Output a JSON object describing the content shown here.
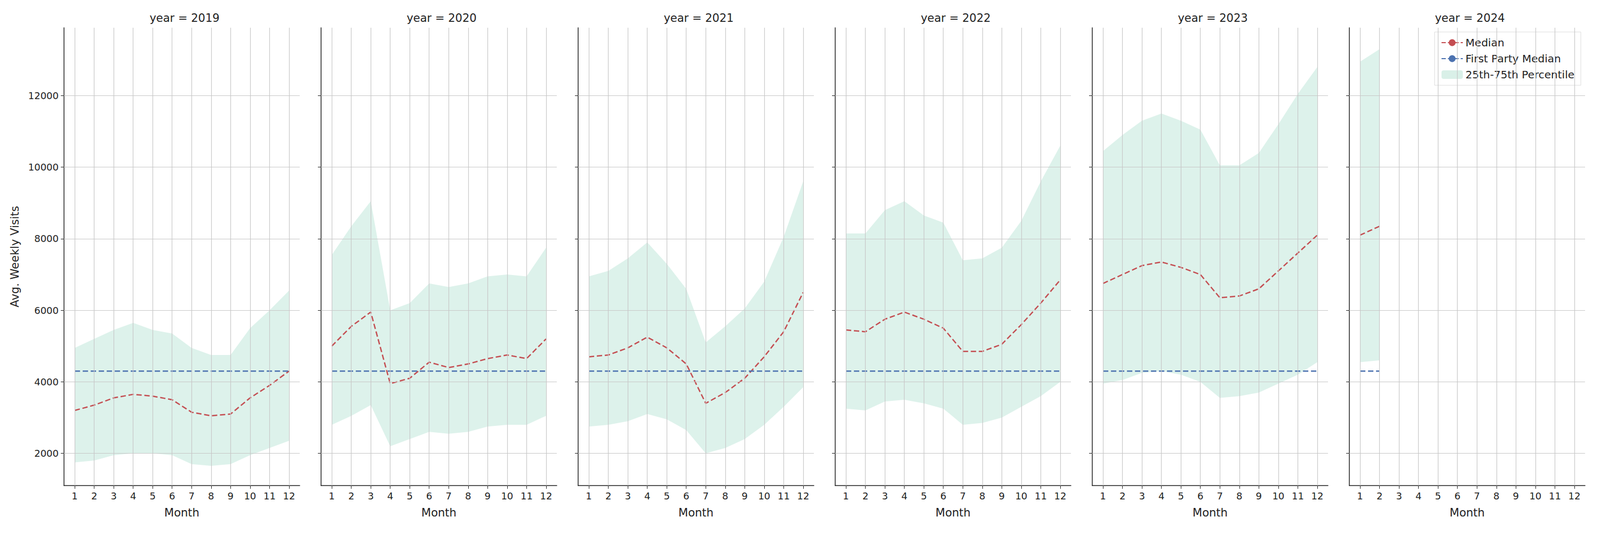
{
  "chart_data": [
    {
      "type": "line",
      "title": "year = 2019",
      "xlabel": "Month",
      "ylabel": "Avg. Weekly Visits",
      "x": [
        1,
        2,
        3,
        4,
        5,
        6,
        7,
        8,
        9,
        10,
        11,
        12
      ],
      "xlim": [
        0.45,
        12.55
      ],
      "xticks": [
        1,
        2,
        3,
        4,
        5,
        6,
        7,
        8,
        9,
        10,
        11,
        12
      ],
      "ylim": [
        1100,
        13900
      ],
      "yticks": [
        2000,
        4000,
        6000,
        8000,
        10000,
        12000
      ],
      "grid": true,
      "series": [
        {
          "name": "Median",
          "color": "#c44e52",
          "line_style": "dashed",
          "values": [
            3200,
            3350,
            3550,
            3650,
            3600,
            3500,
            3150,
            3050,
            3100,
            3550,
            3900,
            4300
          ]
        },
        {
          "name": "First Party Median",
          "color": "#4c72b0",
          "line_style": "dashed",
          "values": [
            4300,
            4300,
            4300,
            4300,
            4300,
            4300,
            4300,
            4300,
            4300,
            4300,
            4300,
            4300
          ]
        },
        {
          "name": "25th-75th Percentile",
          "type": "band",
          "color": "#66c2a5",
          "low": [
            1750,
            1800,
            1950,
            2000,
            2000,
            1950,
            1700,
            1650,
            1700,
            1950,
            2150,
            2350
          ],
          "high": [
            4950,
            5200,
            5450,
            5650,
            5450,
            5350,
            4950,
            4750,
            4750,
            5500,
            6000,
            6550
          ]
        }
      ]
    },
    {
      "type": "line",
      "title": "year = 2020",
      "xlabel": "Month",
      "tick_labels": "x",
      "x": [
        1,
        2,
        3,
        4,
        5,
        6,
        7,
        8,
        9,
        10,
        11,
        12
      ],
      "xlim": [
        0.45,
        12.55
      ],
      "xticks": [
        1,
        2,
        3,
        4,
        5,
        6,
        7,
        8,
        9,
        10,
        11,
        12
      ],
      "ylim": [
        1100,
        13900
      ],
      "yticks": [
        2000,
        4000,
        6000,
        8000,
        10000,
        12000
      ],
      "grid": true,
      "series": [
        {
          "name": "Median",
          "color": "#c44e52",
          "line_style": "dashed",
          "values": [
            5000,
            5550,
            5950,
            3950,
            4100,
            4550,
            4400,
            4500,
            4650,
            4750,
            4650,
            5200
          ]
        },
        {
          "name": "First Party Median",
          "color": "#4c72b0",
          "line_style": "dashed",
          "values": [
            4300,
            4300,
            4300,
            4300,
            4300,
            4300,
            4300,
            4300,
            4300,
            4300,
            4300,
            4300
          ]
        },
        {
          "name": "25th-75th Percentile",
          "type": "band",
          "color": "#66c2a5",
          "low": [
            2800,
            3050,
            3350,
            2200,
            2400,
            2600,
            2550,
            2600,
            2750,
            2800,
            2800,
            3050
          ],
          "high": [
            7550,
            8350,
            9050,
            6000,
            6200,
            6750,
            6650,
            6750,
            6950,
            7000,
            6950,
            7750
          ]
        }
      ]
    },
    {
      "type": "line",
      "title": "year = 2021",
      "xlabel": "Month",
      "tick_labels": "x",
      "x": [
        1,
        2,
        3,
        4,
        5,
        6,
        7,
        8,
        9,
        10,
        11,
        12
      ],
      "xlim": [
        0.45,
        12.55
      ],
      "xticks": [
        1,
        2,
        3,
        4,
        5,
        6,
        7,
        8,
        9,
        10,
        11,
        12
      ],
      "ylim": [
        1100,
        13900
      ],
      "yticks": [
        2000,
        4000,
        6000,
        8000,
        10000,
        12000
      ],
      "grid": true,
      "series": [
        {
          "name": "Median",
          "color": "#c44e52",
          "line_style": "dashed",
          "values": [
            4700,
            4750,
            4950,
            5250,
            4950,
            4500,
            3400,
            3700,
            4100,
            4700,
            5400,
            6500
          ]
        },
        {
          "name": "First Party Median",
          "color": "#4c72b0",
          "line_style": "dashed",
          "values": [
            4300,
            4300,
            4300,
            4300,
            4300,
            4300,
            4300,
            4300,
            4300,
            4300,
            4300,
            4300
          ]
        },
        {
          "name": "25th-75th Percentile",
          "type": "band",
          "color": "#66c2a5",
          "low": [
            2750,
            2800,
            2900,
            3100,
            2950,
            2650,
            2000,
            2150,
            2400,
            2800,
            3300,
            3850
          ],
          "high": [
            6950,
            7100,
            7450,
            7900,
            7300,
            6600,
            5100,
            5550,
            6050,
            6800,
            8050,
            9600
          ]
        }
      ]
    },
    {
      "type": "line",
      "title": "year = 2022",
      "xlabel": "Month",
      "tick_labels": "x",
      "x": [
        1,
        2,
        3,
        4,
        5,
        6,
        7,
        8,
        9,
        10,
        11,
        12
      ],
      "xlim": [
        0.45,
        12.55
      ],
      "xticks": [
        1,
        2,
        3,
        4,
        5,
        6,
        7,
        8,
        9,
        10,
        11,
        12
      ],
      "ylim": [
        1100,
        13900
      ],
      "yticks": [
        2000,
        4000,
        6000,
        8000,
        10000,
        12000
      ],
      "grid": true,
      "series": [
        {
          "name": "Median",
          "color": "#c44e52",
          "line_style": "dashed",
          "values": [
            5450,
            5400,
            5750,
            5950,
            5750,
            5500,
            4850,
            4850,
            5050,
            5600,
            6200,
            6850
          ]
        },
        {
          "name": "First Party Median",
          "color": "#4c72b0",
          "line_style": "dashed",
          "values": [
            4300,
            4300,
            4300,
            4300,
            4300,
            4300,
            4300,
            4300,
            4300,
            4300,
            4300,
            4300
          ]
        },
        {
          "name": "25th-75th Percentile",
          "type": "band",
          "color": "#66c2a5",
          "low": [
            3250,
            3200,
            3450,
            3500,
            3400,
            3250,
            2800,
            2850,
            3000,
            3300,
            3600,
            4000
          ],
          "high": [
            8150,
            8150,
            8800,
            9050,
            8650,
            8450,
            7400,
            7450,
            7750,
            8500,
            9600,
            10600
          ]
        }
      ]
    },
    {
      "type": "line",
      "title": "year = 2023",
      "xlabel": "Month",
      "tick_labels": "x",
      "x": [
        1,
        2,
        3,
        4,
        5,
        6,
        7,
        8,
        9,
        10,
        11,
        12
      ],
      "xlim": [
        0.45,
        12.55
      ],
      "xticks": [
        1,
        2,
        3,
        4,
        5,
        6,
        7,
        8,
        9,
        10,
        11,
        12
      ],
      "ylim": [
        1100,
        13900
      ],
      "yticks": [
        2000,
        4000,
        6000,
        8000,
        10000,
        12000
      ],
      "grid": true,
      "series": [
        {
          "name": "Median",
          "color": "#c44e52",
          "line_style": "dashed",
          "values": [
            6750,
            7000,
            7250,
            7350,
            7200,
            7000,
            6350,
            6400,
            6600,
            7100,
            7600,
            8100
          ]
        },
        {
          "name": "First Party Median",
          "color": "#4c72b0",
          "line_style": "dashed",
          "values": [
            4300,
            4300,
            4300,
            4300,
            4300,
            4300,
            4300,
            4300,
            4300,
            4300,
            4300,
            4300
          ]
        },
        {
          "name": "25th-75th Percentile",
          "type": "band",
          "color": "#66c2a5",
          "low": [
            3950,
            4050,
            4250,
            4300,
            4200,
            4000,
            3550,
            3600,
            3700,
            3950,
            4200,
            4550
          ],
          "high": [
            10450,
            10900,
            11300,
            11500,
            11300,
            11050,
            10050,
            10050,
            10400,
            11200,
            12050,
            12800
          ]
        }
      ]
    },
    {
      "type": "line",
      "title": "year = 2024",
      "xlabel": "Month",
      "tick_labels": "x",
      "legend": "upper right",
      "x": [
        1,
        2
      ],
      "xlim": [
        0.45,
        12.55
      ],
      "xticks": [
        1,
        2,
        3,
        4,
        5,
        6,
        7,
        8,
        9,
        10,
        11,
        12
      ],
      "ylim": [
        1100,
        13900
      ],
      "yticks": [
        2000,
        4000,
        6000,
        8000,
        10000,
        12000
      ],
      "grid": true,
      "series": [
        {
          "name": "Median",
          "color": "#c44e52",
          "line_style": "dashed",
          "values": [
            8100,
            8350
          ]
        },
        {
          "name": "First Party Median",
          "color": "#4c72b0",
          "line_style": "dashed",
          "values": [
            4300,
            4300
          ]
        },
        {
          "name": "25th-75th Percentile",
          "type": "band",
          "color": "#66c2a5",
          "low": [
            4550,
            4600
          ],
          "high": [
            12950,
            13300
          ]
        }
      ]
    }
  ]
}
